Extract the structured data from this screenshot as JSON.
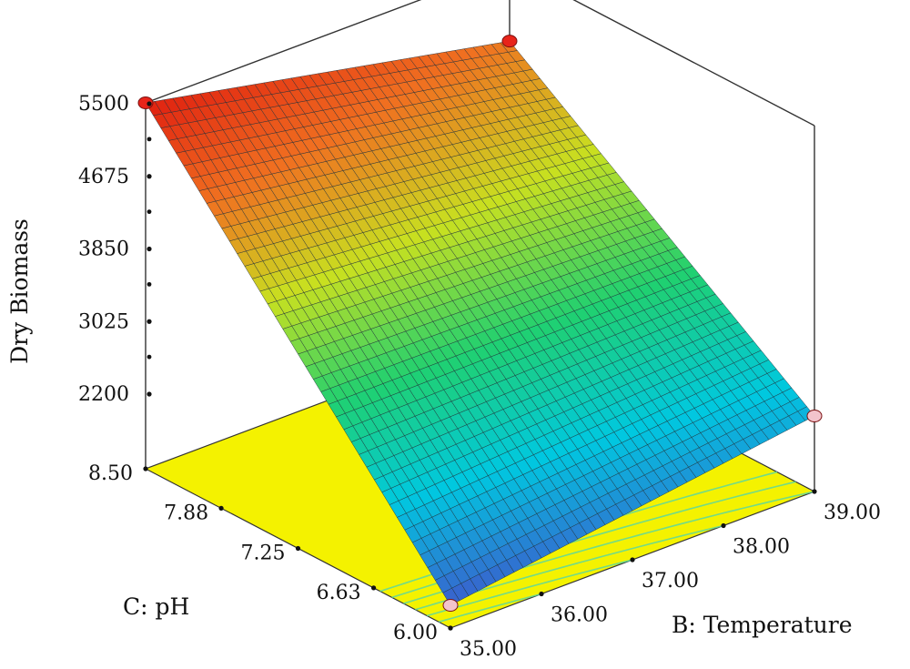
{
  "chart_data": {
    "type": "surface",
    "zlabel": "Dry Biomass",
    "xlabel": "B: Temperature",
    "ylabel": "C: pH",
    "x_range": [
      35.0,
      39.0
    ],
    "y_range": [
      6.0,
      8.5
    ],
    "z_range": [
      2200,
      5500
    ],
    "x_ticks": [
      "35.00",
      "36.00",
      "37.00",
      "38.00",
      "39.00"
    ],
    "y_ticks": [
      "6.00",
      "6.63",
      "7.25",
      "7.88",
      "8.50"
    ],
    "z_ticks": [
      "2200",
      "3025",
      "3850",
      "4675",
      "5500"
    ],
    "corner_points": [
      {
        "temperature": 35.0,
        "ph": 8.5,
        "dry_biomass": 5500,
        "color": "#e8241a"
      },
      {
        "temperature": 39.0,
        "ph": 8.5,
        "dry_biomass": 4650,
        "color": "#e8241a"
      },
      {
        "temperature": 35.0,
        "ph": 6.0,
        "dry_biomass": 1600,
        "color": "#f2c4cc"
      },
      {
        "temperature": 39.0,
        "ph": 6.0,
        "dry_biomass": 2200,
        "color": "#f2c4cc"
      }
    ],
    "grid_lines": true,
    "floor_color": "#f4f200",
    "colormap": [
      "#3a5fcd",
      "#00c8e0",
      "#20d070",
      "#c8e020",
      "#f07020",
      "#e02010"
    ]
  }
}
